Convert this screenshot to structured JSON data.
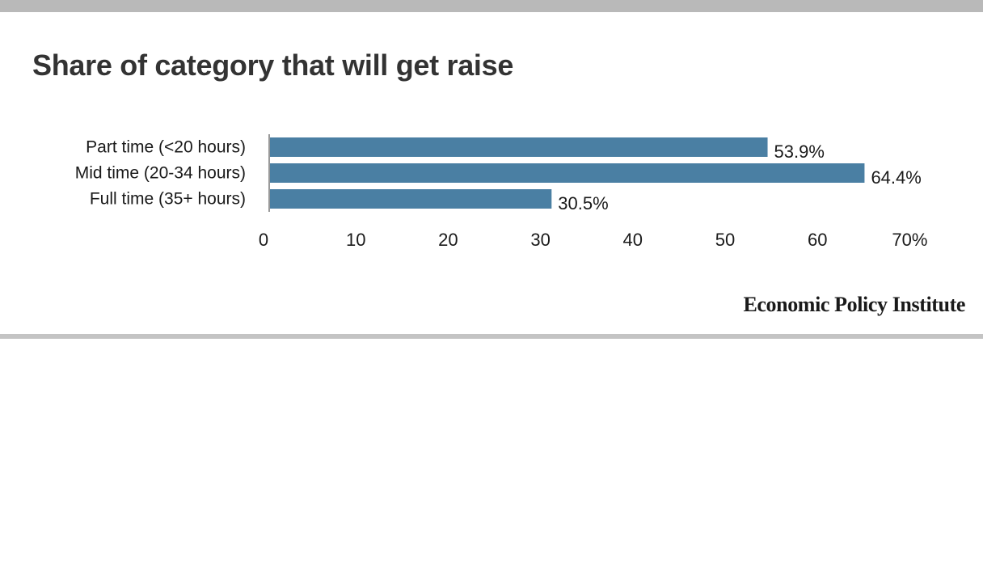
{
  "title": "Share of category that will get raise",
  "source": "Economic Policy Institute",
  "colors": {
    "bar": "#4a7fa3",
    "text": "#1a1a1a",
    "title": "#333333",
    "axis_line": "#999999"
  },
  "chart_data": {
    "type": "bar",
    "orientation": "horizontal",
    "title": "Share of category that will get raise",
    "categories": [
      "Part time (<20 hours)",
      "Mid time (20-34 hours)",
      "Full time (35+ hours)"
    ],
    "values": [
      53.9,
      64.4,
      30.5
    ],
    "value_labels": [
      "53.9%",
      "64.4%",
      "30.5%"
    ],
    "xlim": [
      0,
      70
    ],
    "x_ticks": [
      0,
      10,
      20,
      30,
      40,
      50,
      60,
      70
    ],
    "x_tick_labels": [
      "0",
      "10",
      "20",
      "30",
      "40",
      "50",
      "60",
      "70%"
    ],
    "xlabel": "",
    "ylabel": "",
    "grid": false,
    "legend": "none"
  }
}
